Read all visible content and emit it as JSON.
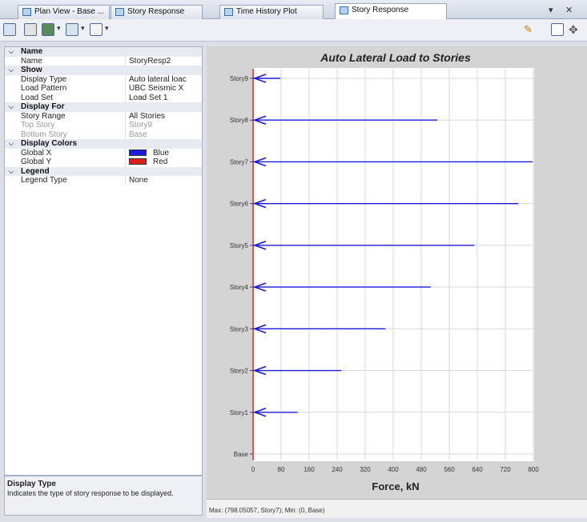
{
  "tabs": [
    {
      "label": "Plan View - Base ..."
    },
    {
      "label": "Story Response"
    },
    {
      "label": "Time History Plot"
    },
    {
      "label": "Story Response"
    }
  ],
  "tab_controls": {
    "menu": "▾",
    "close": "✕"
  },
  "toolbar": {
    "icons": [
      "save-icon",
      "print-icon",
      "image-export-icon",
      "table-icon",
      "view-icon",
      "pencil-icon",
      "copy-icon",
      "move-icon"
    ]
  },
  "properties": {
    "categories": [
      {
        "name": "Name",
        "rows": [
          {
            "label": "Name",
            "value": "StoryResp2"
          }
        ]
      },
      {
        "name": "Show",
        "rows": [
          {
            "label": "Display Type",
            "value": "Auto lateral loac"
          },
          {
            "label": "Load Pattern",
            "value": "UBC Seismic X"
          },
          {
            "label": "Load Set",
            "value": "Load Set 1"
          }
        ]
      },
      {
        "name": "Display For",
        "rows": [
          {
            "label": "Story Range",
            "value": "All Stories"
          },
          {
            "label": "Top Story",
            "value": "Story9"
          },
          {
            "label": "Bottom Story",
            "value": "Base"
          }
        ]
      },
      {
        "name": "Display Colors",
        "rows": [
          {
            "label": "Global X",
            "value": "Blue",
            "color": "#1a1adc"
          },
          {
            "label": "Global Y",
            "value": "Red",
            "color": "#e01b1b"
          }
        ]
      },
      {
        "name": "Legend",
        "rows": [
          {
            "label": "Legend Type",
            "value": "None"
          }
        ]
      }
    ]
  },
  "description": {
    "title": "Display Type",
    "text": "Indicates the type of story response to be displayed."
  },
  "status_text": "Max: (798.05057, Story7);  Min: (0, Base)",
  "chart_data": {
    "type": "bar",
    "orientation": "horizontal",
    "title": "Auto Lateral Load to Stories",
    "xlabel": "Force, kN",
    "ylabel": "",
    "xlim": [
      0,
      800
    ],
    "xticks": [
      0,
      80,
      160,
      240,
      320,
      400,
      480,
      560,
      640,
      720,
      800
    ],
    "categories": [
      "Base",
      "Story1",
      "Story2",
      "Story3",
      "Story4",
      "Story5",
      "Story6",
      "Story7",
      "Story8",
      "Story9"
    ],
    "series": [
      {
        "values": [
          0,
          127,
          252,
          378,
          507,
          632,
          757,
          798.05,
          526,
          78
        ],
        "color": "#1a1adc"
      }
    ],
    "axis_line_color": "#e01b1b",
    "grid": true,
    "legend": "none"
  }
}
